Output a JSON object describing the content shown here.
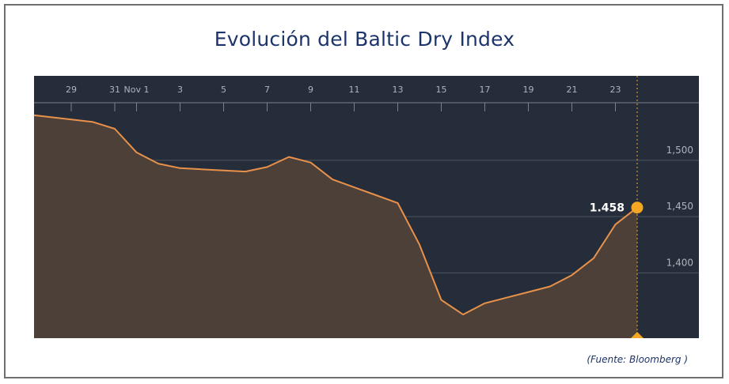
{
  "chart_data": {
    "type": "area",
    "title": "Evolución del Baltic Dry Index",
    "source": "(Fuente: Bloomberg )",
    "x_tick_labels": [
      "29",
      "31",
      "Nov 1",
      "3",
      "5",
      "7",
      "9",
      "11",
      "13",
      "15",
      "17",
      "19",
      "21",
      "23"
    ],
    "x_tick_days": [
      -2,
      0,
      1,
      3,
      5,
      7,
      9,
      11,
      13,
      15,
      17,
      19,
      21,
      23
    ],
    "y_ticks": [
      {
        "value": 1500,
        "label": "1,500"
      },
      {
        "value": 1450,
        "label": "1,450"
      },
      {
        "value": 1400,
        "label": "1,400"
      }
    ],
    "ylim": [
      1342,
      1575
    ],
    "grid": true,
    "series": [
      {
        "x": [
          -3.7,
          -1,
          0,
          1,
          2,
          3,
          5,
          6,
          7,
          8,
          9,
          10,
          11,
          12,
          13,
          14,
          15,
          16,
          17,
          18,
          19,
          20,
          21,
          22,
          23,
          24
        ],
        "values": [
          1540,
          1534,
          1528,
          1507,
          1497,
          1493,
          1491,
          1490,
          1494,
          1503,
          1498,
          1483,
          1476,
          1469,
          1462,
          1425,
          1376,
          1363,
          1373,
          1378,
          1383,
          1388,
          1398,
          1413,
          1443,
          1458
        ]
      }
    ],
    "last_point": {
      "x": 24,
      "value": 1458,
      "label": "1.458"
    },
    "colors": {
      "background": "#262d3a",
      "area_fill": "#4c4039",
      "line": "#e8914a",
      "marker": "#f5a623",
      "grid": "#4d5462",
      "tick_text": "#aeb4bd"
    }
  }
}
